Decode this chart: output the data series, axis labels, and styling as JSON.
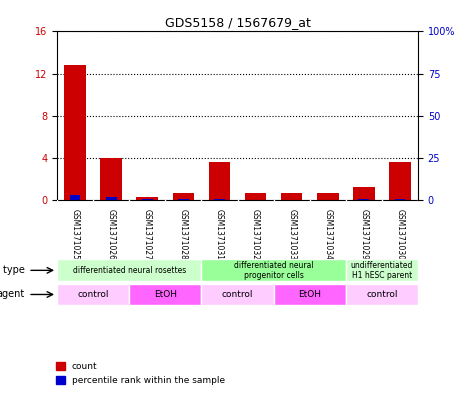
{
  "title": "GDS5158 / 1567679_at",
  "samples": [
    "GSM1371025",
    "GSM1371026",
    "GSM1371027",
    "GSM1371028",
    "GSM1371031",
    "GSM1371032",
    "GSM1371033",
    "GSM1371034",
    "GSM1371029",
    "GSM1371030"
  ],
  "counts": [
    12.8,
    4.05,
    0.35,
    0.7,
    3.6,
    0.65,
    0.65,
    0.65,
    1.3,
    3.6
  ],
  "percentiles": [
    3.3,
    1.7,
    0.55,
    0.55,
    0.9,
    0.3,
    0.3,
    0.3,
    0.55,
    0.9
  ],
  "ylim_left": [
    0,
    16
  ],
  "ylim_right": [
    0,
    100
  ],
  "yticks_left": [
    0,
    4,
    8,
    12,
    16
  ],
  "yticks_right": [
    0,
    25,
    50,
    75,
    100
  ],
  "ytick_labels_right": [
    "0",
    "25",
    "50",
    "75",
    "100%"
  ],
  "bar_color_red": "#cc0000",
  "bar_color_blue": "#0000cc",
  "cell_type_groups": [
    {
      "label": "differentiated neural rosettes",
      "start": 0,
      "end": 4,
      "color": "#ccffcc"
    },
    {
      "label": "differentiated neural\nprogenitor cells",
      "start": 4,
      "end": 8,
      "color": "#99ff99"
    },
    {
      "label": "undifferentiated\nH1 hESC parent",
      "start": 8,
      "end": 10,
      "color": "#ccffcc"
    }
  ],
  "agent_groups": [
    {
      "label": "control",
      "start": 0,
      "end": 2,
      "color": "#ffccff"
    },
    {
      "label": "EtOH",
      "start": 2,
      "end": 4,
      "color": "#ff66ff"
    },
    {
      "label": "control",
      "start": 4,
      "end": 6,
      "color": "#ffccff"
    },
    {
      "label": "EtOH",
      "start": 6,
      "end": 8,
      "color": "#ff66ff"
    },
    {
      "label": "control",
      "start": 8,
      "end": 10,
      "color": "#ffccff"
    }
  ],
  "cell_type_label": "cell type",
  "agent_label": "agent",
  "legend_count": "count",
  "legend_percentile": "percentile rank within the sample",
  "bar_width": 0.6,
  "grid_color": "#000000",
  "bg_color": "#ffffff",
  "sample_row_color": "#cccccc",
  "left_axis_color": "#cc0000",
  "right_axis_color": "#0000cc"
}
